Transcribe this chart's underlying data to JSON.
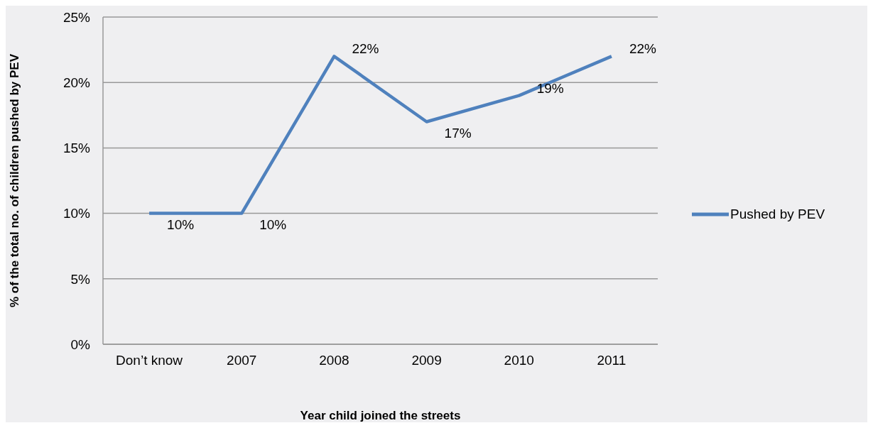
{
  "chart_data": {
    "type": "line",
    "xlabel": "Year child joined the streets",
    "ylabel": "% of the total no. of children pushed by PEV",
    "categories": [
      "Don’t know",
      "2007",
      "2008",
      "2009",
      "2010",
      "2011"
    ],
    "series": [
      {
        "name": "Pushed by PEV",
        "color": "#4f81bd",
        "values": [
          10,
          10,
          22,
          17,
          19,
          22
        ],
        "value_labels": [
          "10%",
          "10%",
          "22%",
          "17%",
          "19%",
          "22%"
        ]
      }
    ],
    "ylim": [
      0,
      25
    ],
    "yticks": [
      {
        "value": 0,
        "label": "0%"
      },
      {
        "value": 5,
        "label": "5%"
      },
      {
        "value": 10,
        "label": "10%"
      },
      {
        "value": 15,
        "label": "15%"
      },
      {
        "value": 20,
        "label": "20%"
      },
      {
        "value": 25,
        "label": "25%"
      }
    ],
    "grid": "y",
    "legend": "right",
    "marker": "none",
    "line_style": "solid"
  }
}
